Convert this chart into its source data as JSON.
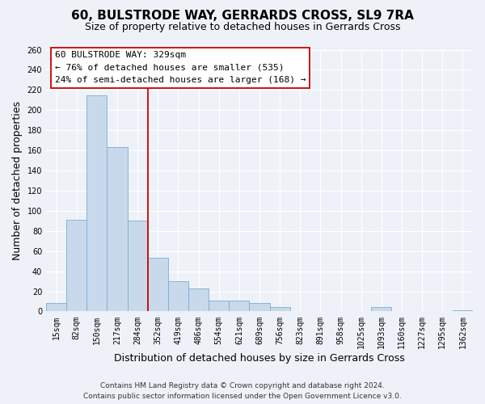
{
  "title": "60, BULSTRODE WAY, GERRARDS CROSS, SL9 7RA",
  "subtitle": "Size of property relative to detached houses in Gerrards Cross",
  "xlabel": "Distribution of detached houses by size in Gerrards Cross",
  "ylabel": "Number of detached properties",
  "bar_labels": [
    "15sqm",
    "82sqm",
    "150sqm",
    "217sqm",
    "284sqm",
    "352sqm",
    "419sqm",
    "486sqm",
    "554sqm",
    "621sqm",
    "689sqm",
    "756sqm",
    "823sqm",
    "891sqm",
    "958sqm",
    "1025sqm",
    "1093sqm",
    "1160sqm",
    "1227sqm",
    "1295sqm",
    "1362sqm"
  ],
  "bar_values": [
    8,
    91,
    215,
    163,
    90,
    53,
    30,
    23,
    11,
    11,
    8,
    4,
    0,
    0,
    0,
    0,
    4,
    0,
    0,
    0,
    1
  ],
  "bar_color": "#c8d9ec",
  "bar_edgecolor": "#7aadd4",
  "vline_x_idx": 4.5,
  "vline_color": "#cc0000",
  "annotation_title": "60 BULSTRODE WAY: 329sqm",
  "annotation_line1": "← 76% of detached houses are smaller (535)",
  "annotation_line2": "24% of semi-detached houses are larger (168) →",
  "annotation_box_color": "white",
  "annotation_box_edgecolor": "#cc0000",
  "ylim": [
    0,
    260
  ],
  "yticks": [
    0,
    20,
    40,
    60,
    80,
    100,
    120,
    140,
    160,
    180,
    200,
    220,
    240,
    260
  ],
  "footer_line1": "Contains HM Land Registry data © Crown copyright and database right 2024.",
  "footer_line2": "Contains public sector information licensed under the Open Government Licence v3.0.",
  "bg_color": "#eef2f8",
  "plot_bg_color": "#eef2f8",
  "grid_color": "#ffffff",
  "title_fontsize": 11,
  "subtitle_fontsize": 9,
  "axis_label_fontsize": 9,
  "tick_fontsize": 7,
  "footer_fontsize": 6.5,
  "annotation_fontsize": 8
}
